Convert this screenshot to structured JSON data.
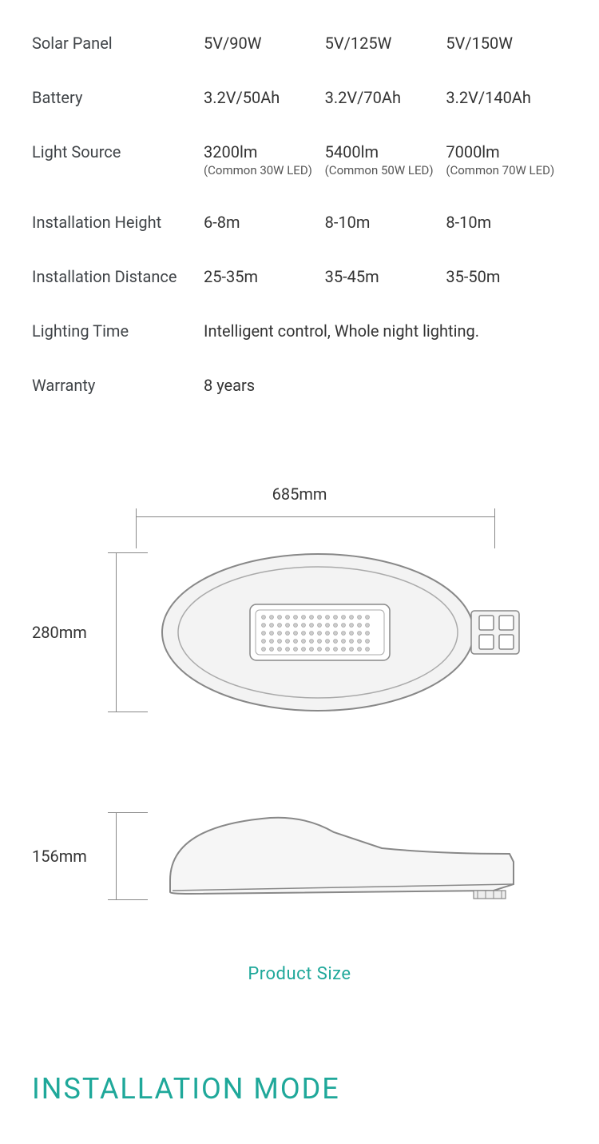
{
  "colors": {
    "text": "#3a3a3a",
    "label": "#404448",
    "accent": "#1fa89a",
    "dim_line": "#888888",
    "lamp_stroke": "#888888",
    "lamp_fill": "#f3f3f3",
    "bg": "#ffffff"
  },
  "typography": {
    "body_fontsize": 20,
    "sub_fontsize": 15,
    "product_size_fontsize": 22,
    "heading_fontsize": 36
  },
  "specs": {
    "rows": [
      {
        "label": "Solar Panel",
        "cols": [
          "5V/90W",
          "5V/125W",
          "5V/150W"
        ]
      },
      {
        "label": "Battery",
        "cols": [
          "3.2V/50Ah",
          "3.2V/70Ah",
          "3.2V/140Ah"
        ]
      },
      {
        "label": "Light Source",
        "cols": [
          "3200lm",
          "5400lm",
          "7000lm"
        ],
        "subs": [
          "(Common 30W LED)",
          "(Common 50W LED)",
          "(Common 70W LED)"
        ]
      },
      {
        "label": "Installation Height",
        "cols": [
          "6-8m",
          "8-10m",
          "8-10m"
        ]
      },
      {
        "label": "Installation Distance",
        "cols": [
          "25-35m",
          "35-45m",
          "35-50m"
        ]
      },
      {
        "label": "Lighting Time",
        "full": "Intelligent control, Whole night lighting."
      },
      {
        "label": "Warranty",
        "full": "8 years"
      }
    ]
  },
  "diagram": {
    "width_label": "685mm",
    "height_label": "280mm",
    "depth_label": "156mm",
    "caption": "Product Size",
    "led_grid": {
      "cols": 14,
      "rows": 5,
      "dot_r": 2.5,
      "spacing": 10
    }
  },
  "heading": "INSTALLATION MODE"
}
